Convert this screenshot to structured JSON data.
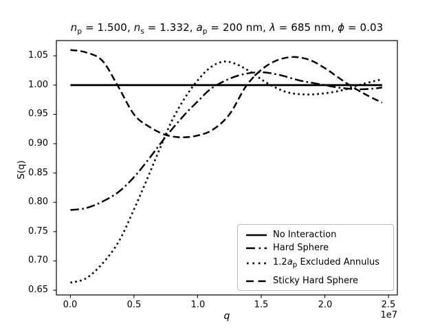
{
  "figure": {
    "background": "#ffffff",
    "ink": "#000000"
  },
  "title": {
    "segments": [
      {
        "v": "n",
        "s": "p",
        "t": " = 1.500, "
      },
      {
        "v": "n",
        "s": "s",
        "t": " = 1.332, "
      },
      {
        "v": "a",
        "s": "p",
        "t": " = 200 nm, "
      },
      {
        "v": "λ",
        "s": "",
        "t": " = 685 nm, "
      },
      {
        "v": "ϕ",
        "s": "",
        "t": " = 0.03"
      }
    ]
  },
  "axes": {
    "ylabel": "S(q)",
    "xlabel": "q",
    "x_offset": "1e7"
  },
  "legend": {
    "items": [
      {
        "label": "No Interaction",
        "style": "solid"
      },
      {
        "label": "Hard Sphere",
        "style": "dashdot"
      },
      {
        "pre": "1.2",
        "var": "a",
        "sub": "p",
        "post": " Excluded Annulus",
        "style": "dotted"
      },
      {
        "label": "Sticky Hard Sphere",
        "style": "dashed"
      }
    ]
  },
  "chart_data": {
    "type": "line",
    "title": "n_p = 1.500, n_s = 1.332, a_p = 200 nm, λ = 685 nm, ϕ = 0.03",
    "xlabel": "q",
    "ylabel": "S(q)",
    "x_offset_label": "1e7",
    "x_units_multiplier": 10000000.0,
    "xlim": [
      -0.11,
      2.57
    ],
    "ylim": [
      0.642,
      1.076
    ],
    "grid": false,
    "legend_position": "lower right",
    "xticks": [
      {
        "value": 0.0,
        "label": "0.0"
      },
      {
        "value": 0.5,
        "label": "0.5"
      },
      {
        "value": 1.0,
        "label": "1.0"
      },
      {
        "value": 1.5,
        "label": "1.5"
      },
      {
        "value": 2.0,
        "label": "2.0"
      },
      {
        "value": 2.5,
        "label": "2.5"
      }
    ],
    "yticks": [
      {
        "value": 0.65,
        "label": "0.65"
      },
      {
        "value": 0.7,
        "label": "0.70"
      },
      {
        "value": 0.75,
        "label": "0.75"
      },
      {
        "value": 0.8,
        "label": "0.80"
      },
      {
        "value": 0.85,
        "label": "0.85"
      },
      {
        "value": 0.9,
        "label": "0.90"
      },
      {
        "value": 0.95,
        "label": "0.95"
      },
      {
        "value": 1.0,
        "label": "1.00"
      },
      {
        "value": 1.05,
        "label": "1.05"
      }
    ],
    "series": [
      {
        "id": "no-interaction",
        "name": "No Interaction",
        "style": "solid",
        "q": [
          0,
          2.45
        ],
        "S": [
          1.0,
          1.0
        ]
      },
      {
        "id": "hard-sphere",
        "name": "Hard Sphere",
        "style": "dashdot",
        "q": [
          0,
          0.12,
          0.25,
          0.38,
          0.5,
          0.62,
          0.75,
          0.9,
          1.0,
          1.1,
          1.22,
          1.35,
          1.5,
          1.65,
          1.8,
          1.95,
          2.1,
          2.25,
          2.38,
          2.45
        ],
        "S": [
          0.787,
          0.79,
          0.801,
          0.818,
          0.843,
          0.875,
          0.912,
          0.95,
          0.972,
          0.993,
          1.008,
          1.018,
          1.022,
          1.017,
          1.008,
          1.002,
          0.996,
          0.993,
          0.994,
          0.996
        ]
      },
      {
        "id": "excluded-annulus",
        "name": "1.2a_p Excluded Annulus",
        "style": "dotted",
        "q": [
          0,
          0.12,
          0.25,
          0.38,
          0.5,
          0.6,
          0.7,
          0.8,
          0.9,
          1.0,
          1.1,
          1.2,
          1.3,
          1.42,
          1.55,
          1.7,
          1.85,
          2.0,
          2.15,
          2.3,
          2.45
        ],
        "S": [
          0.663,
          0.67,
          0.695,
          0.733,
          0.788,
          0.838,
          0.89,
          0.94,
          0.978,
          1.008,
          1.03,
          1.04,
          1.036,
          1.022,
          1.003,
          0.988,
          0.984,
          0.986,
          0.992,
          1.002,
          1.01
        ]
      },
      {
        "id": "sticky-hard-sphere",
        "name": "Sticky Hard Sphere",
        "style": "dashed",
        "q": [
          0,
          0.12,
          0.25,
          0.37,
          0.5,
          0.62,
          0.75,
          0.88,
          1.0,
          1.12,
          1.25,
          1.38,
          1.5,
          1.62,
          1.75,
          1.88,
          2.0,
          2.1,
          2.2,
          2.32,
          2.45
        ],
        "S": [
          1.06,
          1.056,
          1.042,
          1.0,
          0.95,
          0.929,
          0.915,
          0.911,
          0.914,
          0.924,
          0.95,
          0.998,
          1.026,
          1.042,
          1.048,
          1.043,
          1.029,
          1.014,
          0.999,
          0.984,
          0.97
        ]
      }
    ]
  }
}
